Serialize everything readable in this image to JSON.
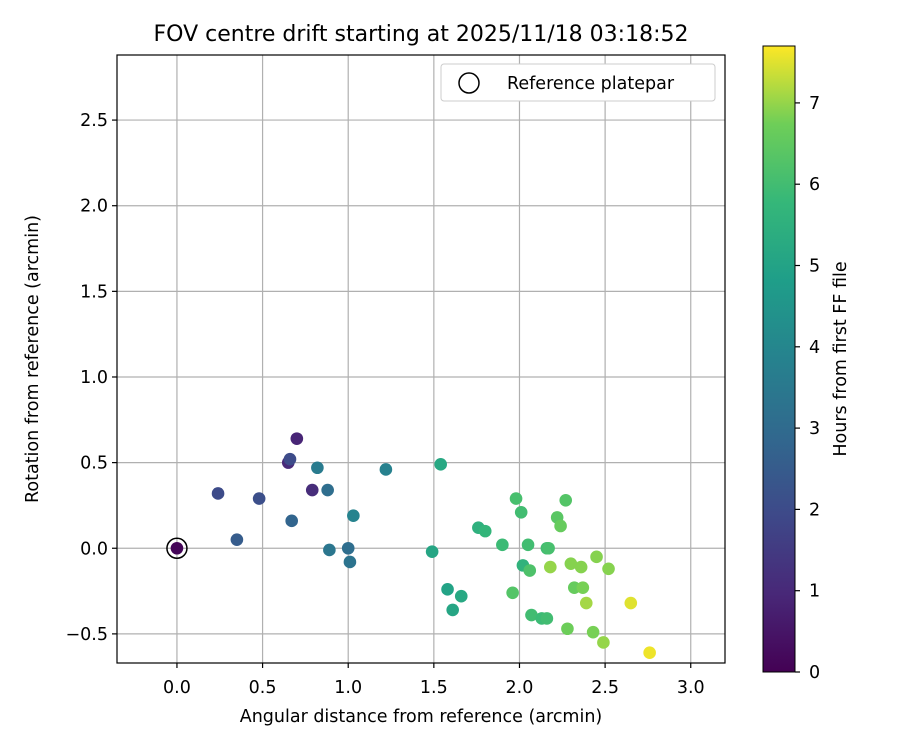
{
  "chart_data": {
    "type": "scatter",
    "title": "FOV centre drift starting at 2025/11/18 03:18:52",
    "xlabel": "Angular distance from reference (arcmin)",
    "ylabel": "Rotation from reference (arcmin)",
    "xlim": [
      -0.35,
      3.2
    ],
    "ylim": [
      -0.67,
      2.88
    ],
    "xticks": [
      0.0,
      0.5,
      1.0,
      1.5,
      2.0,
      2.5,
      3.0
    ],
    "xtick_labels": [
      "0.0",
      "0.5",
      "1.0",
      "1.5",
      "2.0",
      "2.5",
      "3.0"
    ],
    "yticks": [
      -0.5,
      0.0,
      0.5,
      1.0,
      1.5,
      2.0,
      2.5
    ],
    "ytick_labels": [
      "−0.5",
      "0.0",
      "0.5",
      "1.0",
      "1.5",
      "2.0",
      "2.5"
    ],
    "grid": true,
    "legend": {
      "location": "top-right",
      "entries": [
        "Reference platepar"
      ]
    },
    "reference_point": {
      "x": 0.0,
      "y": 0.0
    },
    "colorbar": {
      "label": "Hours from first FF file",
      "colormap": "viridis",
      "range": [
        0,
        7.7
      ],
      "ticks": [
        0,
        1,
        2,
        3,
        4,
        5,
        6,
        7
      ],
      "tick_labels": [
        "0",
        "1",
        "2",
        "3",
        "4",
        "5",
        "6",
        "7"
      ]
    },
    "points": [
      {
        "x": 0.0,
        "y": 0.0,
        "t": 0.1
      },
      {
        "x": 0.7,
        "y": 0.64,
        "t": 0.9
      },
      {
        "x": 0.65,
        "y": 0.5,
        "t": 1.0
      },
      {
        "x": 0.79,
        "y": 0.34,
        "t": 1.1
      },
      {
        "x": 0.66,
        "y": 0.52,
        "t": 2.0
      },
      {
        "x": 0.24,
        "y": 0.32,
        "t": 2.0
      },
      {
        "x": 0.48,
        "y": 0.29,
        "t": 2.1
      },
      {
        "x": 0.35,
        "y": 0.05,
        "t": 2.5
      },
      {
        "x": 0.67,
        "y": 0.16,
        "t": 2.8
      },
      {
        "x": 0.88,
        "y": 0.34,
        "t": 3.1
      },
      {
        "x": 0.89,
        "y": -0.01,
        "t": 3.4
      },
      {
        "x": 0.82,
        "y": 0.47,
        "t": 3.6
      },
      {
        "x": 1.0,
        "y": 0.0,
        "t": 3.1
      },
      {
        "x": 1.01,
        "y": -0.08,
        "t": 3.3
      },
      {
        "x": 1.03,
        "y": 0.19,
        "t": 3.9
      },
      {
        "x": 1.22,
        "y": 0.46,
        "t": 3.8
      },
      {
        "x": 1.49,
        "y": -0.02,
        "t": 5.1
      },
      {
        "x": 1.54,
        "y": 0.49,
        "t": 5.2
      },
      {
        "x": 1.58,
        "y": -0.24,
        "t": 5.0
      },
      {
        "x": 1.61,
        "y": -0.36,
        "t": 5.1
      },
      {
        "x": 1.66,
        "y": -0.28,
        "t": 5.2
      },
      {
        "x": 1.76,
        "y": 0.12,
        "t": 5.5
      },
      {
        "x": 1.8,
        "y": 0.1,
        "t": 5.7
      },
      {
        "x": 1.9,
        "y": 0.02,
        "t": 5.9
      },
      {
        "x": 1.96,
        "y": -0.26,
        "t": 6.3
      },
      {
        "x": 1.98,
        "y": 0.29,
        "t": 6.1
      },
      {
        "x": 2.01,
        "y": 0.21,
        "t": 6.0
      },
      {
        "x": 2.02,
        "y": -0.1,
        "t": 5.6
      },
      {
        "x": 2.05,
        "y": 0.02,
        "t": 6.0
      },
      {
        "x": 2.06,
        "y": -0.13,
        "t": 6.2
      },
      {
        "x": 2.07,
        "y": -0.39,
        "t": 6.0
      },
      {
        "x": 2.13,
        "y": -0.41,
        "t": 5.9
      },
      {
        "x": 2.16,
        "y": -0.41,
        "t": 6.0
      },
      {
        "x": 2.16,
        "y": 0.0,
        "t": 6.0
      },
      {
        "x": 2.17,
        "y": 0.0,
        "t": 6.1
      },
      {
        "x": 2.18,
        "y": -0.11,
        "t": 7.0
      },
      {
        "x": 2.22,
        "y": 0.18,
        "t": 6.4
      },
      {
        "x": 2.24,
        "y": 0.13,
        "t": 6.6
      },
      {
        "x": 2.27,
        "y": 0.28,
        "t": 6.3
      },
      {
        "x": 2.28,
        "y": -0.47,
        "t": 6.7
      },
      {
        "x": 2.3,
        "y": -0.09,
        "t": 6.9
      },
      {
        "x": 2.32,
        "y": -0.23,
        "t": 6.6
      },
      {
        "x": 2.36,
        "y": -0.11,
        "t": 6.9
      },
      {
        "x": 2.37,
        "y": -0.23,
        "t": 6.8
      },
      {
        "x": 2.39,
        "y": -0.32,
        "t": 7.1
      },
      {
        "x": 2.43,
        "y": -0.49,
        "t": 6.8
      },
      {
        "x": 2.45,
        "y": -0.05,
        "t": 6.9
      },
      {
        "x": 2.49,
        "y": -0.55,
        "t": 7.0
      },
      {
        "x": 2.52,
        "y": -0.12,
        "t": 6.9
      },
      {
        "x": 2.65,
        "y": -0.32,
        "t": 7.5
      },
      {
        "x": 2.76,
        "y": -0.61,
        "t": 7.6
      }
    ]
  }
}
